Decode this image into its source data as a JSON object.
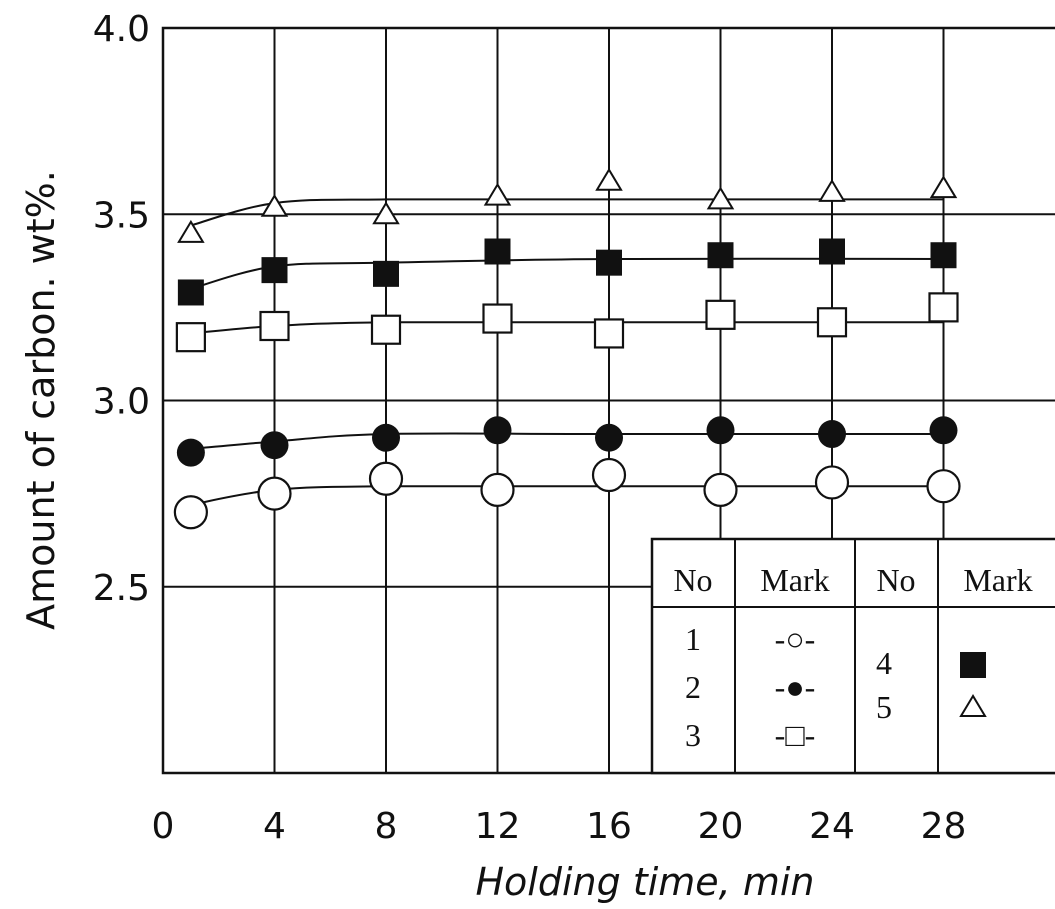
{
  "chart_data": {
    "type": "scatter",
    "xlabel": "Holding time, min",
    "ylabel": "Amount of carbon. wt%.",
    "x_ticks": [
      "0",
      "4",
      "8",
      "12",
      "16",
      "20",
      "24",
      "28"
    ],
    "y_ticks": [
      "2.5",
      "3.0",
      "3.5",
      "4.0"
    ],
    "xlim": [
      0,
      32
    ],
    "ylim": [
      2.0,
      4.0
    ],
    "grid": true,
    "legend_placement": "bottom-right table",
    "legend": {
      "headers": [
        "No",
        "Mark",
        "No",
        "Mark"
      ],
      "left_nos": [
        "1",
        "2",
        "3"
      ],
      "left_marks": [
        "-○-",
        "-●-",
        "-□-"
      ],
      "right_nos": [
        "4",
        "5"
      ]
    },
    "series": [
      {
        "no": "1",
        "marker": "open-circle",
        "x": [
          1,
          4,
          8,
          12,
          16,
          20,
          24,
          28
        ],
        "y": [
          2.7,
          2.75,
          2.79,
          2.76,
          2.8,
          2.76,
          2.78,
          2.77
        ]
      },
      {
        "no": "2",
        "marker": "filled-circle",
        "x": [
          1,
          4,
          8,
          12,
          16,
          20,
          24,
          28
        ],
        "y": [
          2.86,
          2.88,
          2.9,
          2.92,
          2.9,
          2.92,
          2.91,
          2.92
        ]
      },
      {
        "no": "3",
        "marker": "open-square",
        "x": [
          1,
          4,
          8,
          12,
          16,
          20,
          24,
          28
        ],
        "y": [
          3.17,
          3.2,
          3.19,
          3.22,
          3.18,
          3.23,
          3.21,
          3.25
        ]
      },
      {
        "no": "4",
        "marker": "filled-square",
        "x": [
          1,
          4,
          8,
          12,
          16,
          20,
          24,
          28
        ],
        "y": [
          3.29,
          3.35,
          3.34,
          3.4,
          3.37,
          3.39,
          3.4,
          3.39
        ]
      },
      {
        "no": "5",
        "marker": "open-triangle",
        "x": [
          1,
          4,
          8,
          12,
          16,
          20,
          24,
          28
        ],
        "y": [
          3.45,
          3.52,
          3.5,
          3.55,
          3.59,
          3.54,
          3.56,
          3.57
        ]
      }
    ],
    "curves": [
      {
        "no": "1",
        "x": [
          1,
          4,
          8,
          16,
          28
        ],
        "y": [
          2.72,
          2.76,
          2.77,
          2.77,
          2.77
        ]
      },
      {
        "no": "2",
        "x": [
          1,
          4,
          8,
          16,
          28
        ],
        "y": [
          2.87,
          2.89,
          2.91,
          2.91,
          2.91
        ]
      },
      {
        "no": "3",
        "x": [
          1,
          4,
          8,
          16,
          28
        ],
        "y": [
          3.18,
          3.2,
          3.21,
          3.21,
          3.21
        ]
      },
      {
        "no": "4",
        "x": [
          1,
          4,
          8,
          16,
          28
        ],
        "y": [
          3.3,
          3.36,
          3.37,
          3.38,
          3.38
        ]
      },
      {
        "no": "5",
        "x": [
          1,
          4,
          8,
          16,
          28
        ],
        "y": [
          3.47,
          3.53,
          3.54,
          3.54,
          3.54
        ]
      }
    ]
  }
}
